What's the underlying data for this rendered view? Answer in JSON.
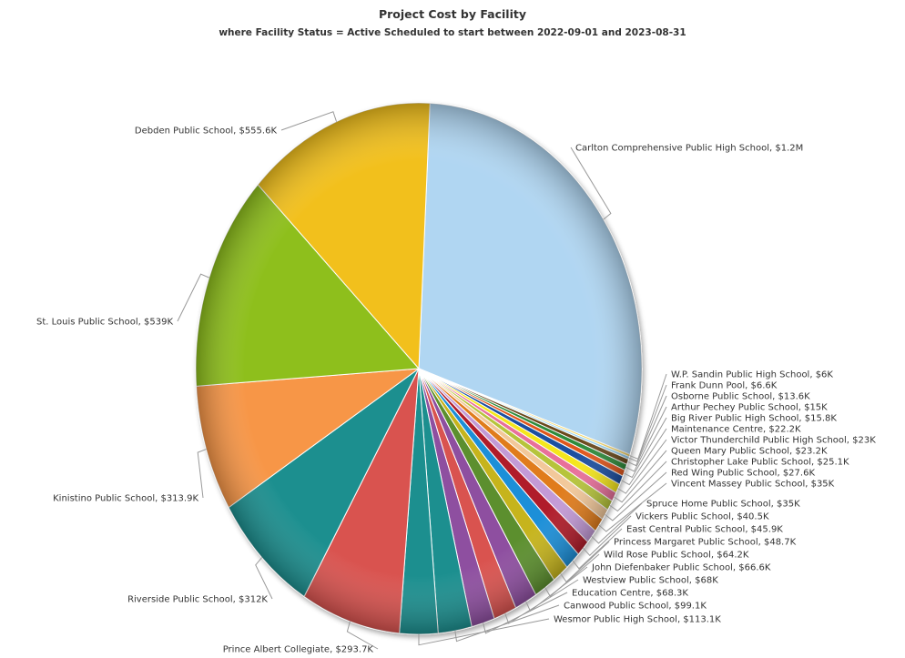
{
  "chart_data": {
    "type": "pie",
    "title": "Project Cost by Facility",
    "subtitle": "where Facility Status = Active Scheduled to start between 2022-09-01 and 2023-08-31",
    "slices": [
      {
        "name": "Carlton Comprehensive Public High School",
        "value": 1200000,
        "label": "Carlton Comprehensive Public High School, $1.2M",
        "color": "#b0d6f2"
      },
      {
        "name": "W.P. Sandin Public High School",
        "value": 6000,
        "label": "W.P. Sandin Public High School, $6K",
        "color": "#f2d35a"
      },
      {
        "name": "Frank Dunn Pool",
        "value": 6600,
        "label": "Frank Dunn Pool, $6.6K",
        "color": "#8fd0f0"
      },
      {
        "name": "Osborne Public School",
        "value": 13600,
        "label": "Osborne Public School, $13.6K",
        "color": "#6b4a1e"
      },
      {
        "name": "Arthur Pechey Public School",
        "value": 15000,
        "label": "Arthur Pechey Public School, $15K",
        "color": "#2e8b3a"
      },
      {
        "name": "Big River Public High School",
        "value": 15800,
        "label": "Big River Public High School, $15.8K",
        "color": "#e0561c"
      },
      {
        "name": "Maintenance Centre",
        "value": 22200,
        "label": "Maintenance Centre, $22.2K",
        "color": "#1c4fa0"
      },
      {
        "name": "Victor Thunderchild Public High School",
        "value": 23000,
        "label": "Victor Thunderchild Public High School, $23K",
        "color": "#f5e61e"
      },
      {
        "name": "Queen Mary Public School",
        "value": 23200,
        "label": "Queen Mary Public School, $23.2K",
        "color": "#e8709a"
      },
      {
        "name": "Christopher Lake Public School",
        "value": 25100,
        "label": "Christopher Lake Public School, $25.1K",
        "color": "#b6c43a"
      },
      {
        "name": "Red Wing Public School",
        "value": 27600,
        "label": "Red Wing Public School, $27.6K",
        "color": "#f2c89a"
      },
      {
        "name": "Vincent Massey Public School",
        "value": 35000,
        "label": "Vincent Massey Public School, $35K",
        "color": "#e07c1a"
      },
      {
        "name": "Spruce Home Public School",
        "value": 35000,
        "label": "Spruce Home Public School, $35K",
        "color": "#c39ad6"
      },
      {
        "name": "Vickers Public School",
        "value": 40500,
        "label": "Vickers Public School, $40.5K",
        "color": "#b01c2a"
      },
      {
        "name": "East Central Public School",
        "value": 45900,
        "label": "East Central Public School, $45.9K",
        "color": "#1f8fd8"
      },
      {
        "name": "Princess Margaret Public School",
        "value": 48700,
        "label": "Princess Margaret Public School, $48.7K",
        "color": "#c6b41a"
      },
      {
        "name": "Wild Rose Public School",
        "value": 64200,
        "label": "Wild Rose Public School, $64.2K",
        "color": "#5c8f2e"
      },
      {
        "name": "John Diefenbaker Public School",
        "value": 66600,
        "label": "John Diefenbaker Public School, $66.6K",
        "color": "#8e4fa0"
      },
      {
        "name": "Westview Public School",
        "value": 68000,
        "label": "Westview Public School, $68K",
        "color": "#d9534f"
      },
      {
        "name": "Education Centre",
        "value": 68300,
        "label": "Education Centre, $68.3K",
        "color": "#8e4fa0"
      },
      {
        "name": "Canwood Public School",
        "value": 99100,
        "label": "Canwood Public School, $99.1K",
        "color": "#1b8f8f"
      },
      {
        "name": "Wesmor Public High School",
        "value": 113100,
        "label": "Wesmor Public High School, $113.1K",
        "color": "#1b8f8f"
      },
      {
        "name": "Prince Albert Collegiate",
        "value": 293700,
        "label": "Prince Albert Collegiate, $293.7K",
        "color": "#d9534f"
      },
      {
        "name": "Riverside Public School",
        "value": 312000,
        "label": "Riverside Public School, $312K",
        "color": "#1b8f8f"
      },
      {
        "name": "Kinistino Public School",
        "value": 313900,
        "label": "Kinistino Public School, $313.9K",
        "color": "#f79646"
      },
      {
        "name": "St. Louis Public School",
        "value": 539000,
        "label": "St. Louis Public School, $539K",
        "color": "#8ebf1a"
      },
      {
        "name": "Debden Public School",
        "value": 555600,
        "label": "Debden Public School, $555.6K",
        "color": "#f2c01e"
      }
    ]
  }
}
